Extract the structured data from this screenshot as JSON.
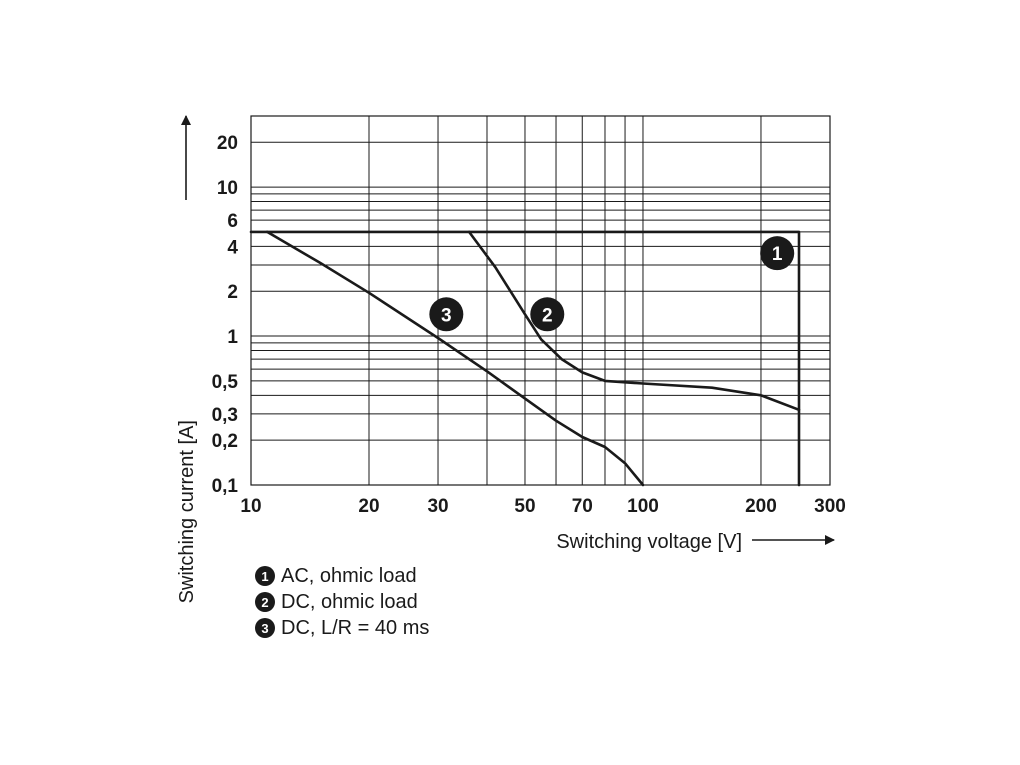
{
  "chart_data": {
    "type": "line",
    "xscale": "log",
    "yscale": "log",
    "xlim": [
      10,
      300
    ],
    "ylim": [
      0.1,
      30
    ],
    "xlabel": "Switching voltage [V]",
    "ylabel": "Switching current [A]",
    "x_ticks": [
      {
        "value": 10,
        "label": "10"
      },
      {
        "value": 20,
        "label": "20"
      },
      {
        "value": 30,
        "label": "30"
      },
      {
        "value": 50,
        "label": "50"
      },
      {
        "value": 70,
        "label": "70"
      },
      {
        "value": 100,
        "label": "100"
      },
      {
        "value": 200,
        "label": "200"
      },
      {
        "value": 300,
        "label": "300"
      }
    ],
    "y_ticks": [
      {
        "value": 0.1,
        "label": "0,1"
      },
      {
        "value": 0.2,
        "label": "0,2"
      },
      {
        "value": 0.3,
        "label": "0,3"
      },
      {
        "value": 0.5,
        "label": "0,5"
      },
      {
        "value": 1,
        "label": "1"
      },
      {
        "value": 2,
        "label": "2"
      },
      {
        "value": 4,
        "label": "4"
      },
      {
        "value": 6,
        "label": "6"
      },
      {
        "value": 10,
        "label": "10"
      },
      {
        "value": 20,
        "label": "20"
      }
    ],
    "x_grid": [
      20,
      30,
      40,
      50,
      60,
      70,
      80,
      90,
      100,
      200
    ],
    "y_grid": [
      0.2,
      0.3,
      0.4,
      0.5,
      0.6,
      0.7,
      0.8,
      0.9,
      1,
      2,
      3,
      4,
      5,
      6,
      7,
      8,
      9,
      10,
      20
    ],
    "series": [
      {
        "marker": "1",
        "name": "AC, ohmic load",
        "points": [
          [
            10,
            5
          ],
          [
            250,
            5
          ],
          [
            250,
            0.1
          ]
        ],
        "marker_at": [
          220,
          3.6
        ]
      },
      {
        "marker": "2",
        "name": "DC, ohmic load",
        "points": [
          [
            36,
            5
          ],
          [
            42,
            2.9
          ],
          [
            50,
            1.4
          ],
          [
            55,
            0.95
          ],
          [
            62,
            0.7
          ],
          [
            70,
            0.57
          ],
          [
            80,
            0.5
          ],
          [
            100,
            0.48
          ],
          [
            150,
            0.45
          ],
          [
            200,
            0.4
          ],
          [
            250,
            0.32
          ]
        ],
        "marker_at": [
          57,
          1.4
        ]
      },
      {
        "marker": "3",
        "name": "DC, L/R = 40 ms",
        "points": [
          [
            11,
            5
          ],
          [
            15,
            3.1
          ],
          [
            20,
            1.95
          ],
          [
            30,
            0.97
          ],
          [
            40,
            0.58
          ],
          [
            50,
            0.38
          ],
          [
            60,
            0.27
          ],
          [
            70,
            0.21
          ],
          [
            80,
            0.18
          ],
          [
            90,
            0.14
          ],
          [
            100,
            0.1
          ]
        ],
        "marker_at": [
          31.5,
          1.4
        ]
      }
    ]
  },
  "legend": [
    {
      "badge": "1",
      "label": "AC, ohmic load"
    },
    {
      "badge": "2",
      "label": "DC, ohmic load"
    },
    {
      "badge": "3",
      "label": "DC, L/R = 40 ms"
    }
  ],
  "colors": {
    "ink": "#1a1a1a",
    "grid": "#1a1a1a"
  }
}
